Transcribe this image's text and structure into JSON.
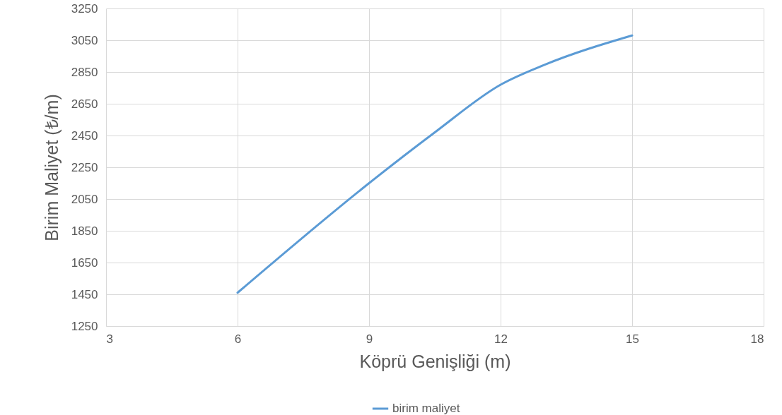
{
  "chart_data": {
    "type": "line",
    "xlabel": "Köprü Genişliği (m)",
    "ylabel": "Birim Maliyet (₺/m)",
    "x": [
      6,
      9,
      10.5,
      12,
      13,
      15
    ],
    "series": [
      {
        "name": "birim maliyet",
        "color": "#5b9bd5",
        "values": [
          1460,
          2150,
          2470,
          2770,
          2895,
          3080
        ]
      }
    ],
    "xlim": [
      3,
      18
    ],
    "xticks": [
      3,
      6,
      9,
      12,
      15,
      18
    ],
    "ylim": [
      1250,
      3250
    ],
    "yticks": [
      1250,
      1450,
      1650,
      1850,
      2050,
      2250,
      2450,
      2650,
      2850,
      3050,
      3250
    ],
    "grid": true,
    "legend": "bottom",
    "marker": "none",
    "line_style": "solid"
  }
}
